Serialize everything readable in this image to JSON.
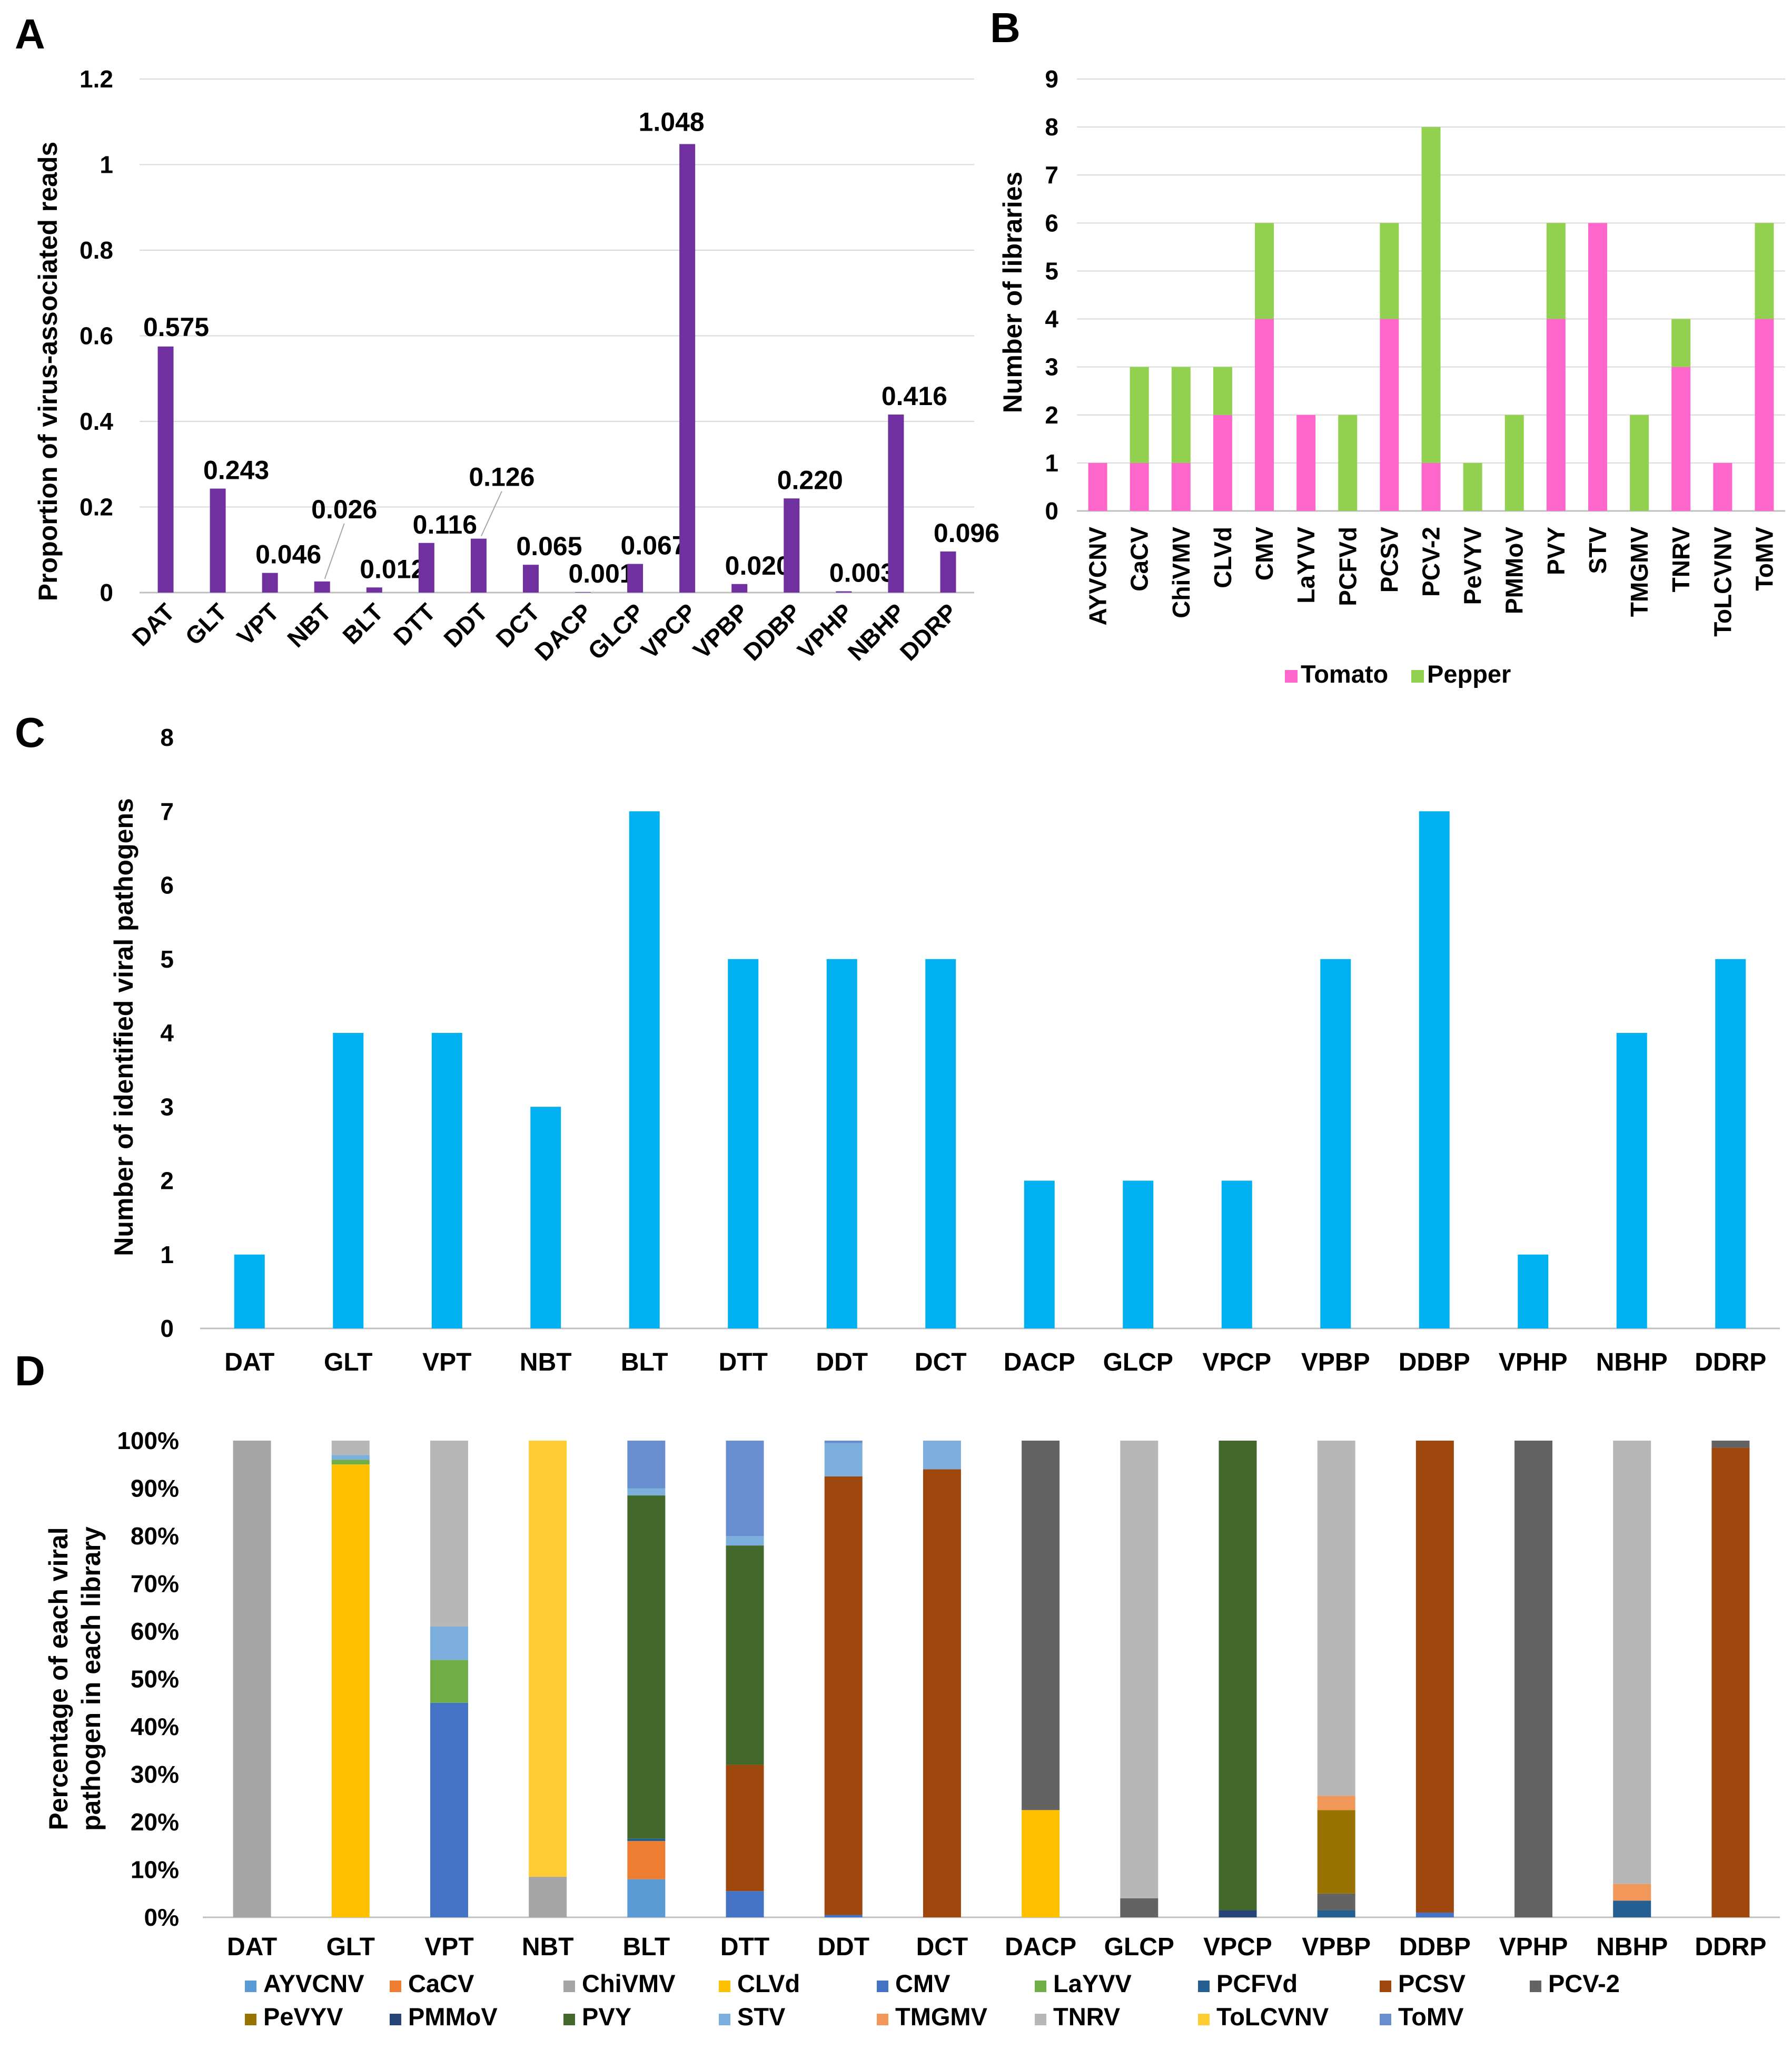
{
  "figure": {
    "panel_labels": [
      "A",
      "B",
      "C",
      "D"
    ]
  },
  "chart_data": [
    {
      "panel": "A",
      "type": "bar",
      "title": "",
      "xlabel": "",
      "ylabel": "Proportion of virus-associated  reads",
      "categories": [
        "DAT",
        "GLT",
        "VPT",
        "NBT",
        "BLT",
        "DTT",
        "DDT",
        "DCT",
        "DACP",
        "GLCP",
        "VPCP",
        "VPBP",
        "DDBP",
        "VPHP",
        "NBHP",
        "DDRP"
      ],
      "values": [
        0.575,
        0.243,
        0.046,
        0.026,
        0.012,
        0.116,
        0.126,
        0.065,
        0.001,
        0.067,
        1.048,
        0.02,
        0.22,
        0.003,
        0.416,
        0.096
      ],
      "value_labels": [
        "0.575",
        "0.243",
        "0.046",
        "0.026",
        "0.012",
        "0.116",
        "0.126",
        "0.065",
        "0.001",
        "0.067",
        "1.048",
        "0.020",
        "0.220",
        "0.003",
        "0.416",
        "0.096"
      ],
      "y_ticks": [
        "0",
        "0.2",
        "0.4",
        "0.6",
        "0.8",
        "1",
        "1.2"
      ],
      "ylim": [
        0,
        1.2
      ],
      "grid": true,
      "color": "#7030a0"
    },
    {
      "panel": "B",
      "type": "bar",
      "stacked": true,
      "title": "",
      "xlabel": "",
      "ylabel": "Number of libraries",
      "categories": [
        "AYVCNV",
        "CaCV",
        "ChiVMV",
        "CLVd",
        "CMV",
        "LaYVV",
        "PCFVd",
        "PCSV",
        "PCV-2",
        "PeVYV",
        "PMMoV",
        "PVY",
        "STV",
        "TMGMV",
        "TNRV",
        "ToLCVNV",
        "ToMV"
      ],
      "series": [
        {
          "name": "Tomato",
          "color": "#ff66cc",
          "values": [
            1,
            1,
            1,
            2,
            4,
            2,
            0,
            4,
            1,
            0,
            0,
            4,
            6,
            0,
            3,
            1,
            4
          ]
        },
        {
          "name": "Pepper",
          "color": "#92d050",
          "values": [
            0,
            2,
            2,
            1,
            2,
            0,
            2,
            2,
            7,
            1,
            2,
            2,
            0,
            2,
            1,
            0,
            2
          ]
        }
      ],
      "y_ticks": [
        "0",
        "1",
        "2",
        "3",
        "4",
        "5",
        "6",
        "7",
        "8",
        "9"
      ],
      "ylim": [
        0,
        9
      ],
      "legend": "bottom",
      "grid": true
    },
    {
      "panel": "C",
      "type": "bar",
      "title": "",
      "xlabel": "",
      "ylabel": "Number of identified viral pathogens",
      "categories": [
        "DAT",
        "GLT",
        "VPT",
        "NBT",
        "BLT",
        "DTT",
        "DDT",
        "DCT",
        "DACP",
        "GLCP",
        "VPCP",
        "VPBP",
        "DDBP",
        "VPHP",
        "NBHP",
        "DDRP"
      ],
      "values": [
        1,
        4,
        4,
        3,
        7,
        5,
        5,
        5,
        2,
        2,
        2,
        5,
        7,
        1,
        4,
        5
      ],
      "y_ticks": [
        "0",
        "1",
        "2",
        "3",
        "4",
        "5",
        "6",
        "7",
        "8"
      ],
      "ylim": [
        0,
        8
      ],
      "grid": false,
      "color": "#00b0f0"
    },
    {
      "panel": "D",
      "type": "bar",
      "stacked": true,
      "percent": true,
      "title": "",
      "xlabel": "",
      "ylabel": "Percentage of each viral pathogen in each library",
      "ylabel_lines": [
        "Percentage of each viral",
        "pathogen in each library"
      ],
      "categories": [
        "DAT",
        "GLT",
        "VPT",
        "NBT",
        "BLT",
        "DTT",
        "DDT",
        "DCT",
        "DACP",
        "GLCP",
        "VPCP",
        "VPBP",
        "DDBP",
        "VPHP",
        "NBHP",
        "DDRP"
      ],
      "series": [
        {
          "name": "AYVCNV",
          "color": "#5b9bd5",
          "values": [
            0,
            0,
            0,
            0,
            8,
            0,
            0,
            0,
            0,
            0,
            0,
            0,
            0,
            0,
            0,
            0
          ]
        },
        {
          "name": "CaCV",
          "color": "#ed7d31",
          "values": [
            0,
            0,
            0,
            0,
            8,
            0,
            0,
            0,
            0,
            0,
            0,
            0,
            0,
            0,
            0,
            0
          ]
        },
        {
          "name": "ChiVMV",
          "color": "#a5a5a5",
          "values": [
            100,
            0,
            0,
            8.5,
            0,
            0,
            0,
            0,
            0,
            0,
            0,
            0,
            0,
            0,
            0,
            0
          ]
        },
        {
          "name": "CLVd",
          "color": "#ffc000",
          "values": [
            0,
            95,
            0,
            0,
            0,
            0,
            0,
            0,
            22.5,
            0,
            0,
            0,
            0,
            0,
            0,
            0
          ]
        },
        {
          "name": "CMV",
          "color": "#4472c4",
          "values": [
            0,
            0,
            45,
            0,
            0,
            5.5,
            0.5,
            0,
            0,
            0,
            0,
            0,
            1,
            0,
            0,
            0
          ]
        },
        {
          "name": "LaYVV",
          "color": "#70ad47",
          "values": [
            0,
            1,
            9,
            0,
            0,
            0,
            0,
            0,
            0,
            0,
            0,
            0,
            0,
            0,
            0,
            0
          ]
        },
        {
          "name": "PCFVd",
          "color": "#255e91",
          "values": [
            0,
            0,
            0,
            0,
            0.5,
            0,
            0,
            0,
            0,
            0,
            0,
            1.5,
            0,
            0,
            3.5,
            0
          ]
        },
        {
          "name": "PCSV",
          "color": "#9e480e",
          "values": [
            0,
            0,
            0,
            0,
            0,
            26.5,
            92,
            94,
            0,
            0,
            0,
            0,
            99,
            0,
            0,
            98.5
          ]
        },
        {
          "name": "PCV-2",
          "color": "#636363",
          "values": [
            0,
            0,
            0,
            0,
            0,
            0,
            0,
            0,
            77.5,
            4,
            0,
            3.5,
            0,
            100,
            0,
            1.5
          ]
        },
        {
          "name": "PeVYV",
          "color": "#997300",
          "values": [
            0,
            0,
            0,
            0,
            0,
            0,
            0,
            0,
            0,
            0,
            0,
            17.5,
            0,
            0,
            0,
            0
          ]
        },
        {
          "name": "PMMoV",
          "color": "#264478",
          "values": [
            0,
            0,
            0,
            0,
            0,
            0,
            0,
            0,
            0,
            0,
            1.5,
            0,
            0,
            0,
            0,
            0
          ]
        },
        {
          "name": "PVY",
          "color": "#43682b",
          "values": [
            0,
            0,
            0,
            0,
            72,
            46,
            0,
            0,
            0,
            0,
            98.5,
            0,
            0,
            0,
            0,
            0
          ]
        },
        {
          "name": "STV",
          "color": "#7cafdd",
          "values": [
            0,
            1,
            7,
            0,
            1.5,
            2,
            7,
            6,
            0,
            0,
            0,
            0,
            0,
            0,
            0,
            0
          ]
        },
        {
          "name": "TMGMV",
          "color": "#f1975a",
          "values": [
            0,
            0,
            0,
            0,
            0,
            0,
            0,
            0,
            0,
            0,
            0,
            3,
            0,
            0,
            3.5,
            0
          ]
        },
        {
          "name": "TNRV",
          "color": "#b7b7b7",
          "values": [
            0,
            3,
            39,
            0,
            0,
            0,
            0,
            0,
            0,
            96,
            0,
            74.5,
            0,
            0,
            93,
            0
          ]
        },
        {
          "name": "ToLCVNV",
          "color": "#ffcd33",
          "values": [
            0,
            0,
            0,
            91.5,
            0,
            0,
            0,
            0,
            0,
            0,
            0,
            0,
            0,
            0,
            0,
            0
          ]
        },
        {
          "name": "ToMV",
          "color": "#698ed0",
          "values": [
            0,
            0,
            0,
            0,
            10,
            20,
            0.5,
            0,
            0,
            0,
            0,
            0,
            0,
            0,
            0,
            0
          ]
        }
      ],
      "y_ticks": [
        "0%",
        "10%",
        "20%",
        "30%",
        "40%",
        "50%",
        "60%",
        "70%",
        "80%",
        "90%",
        "100%"
      ],
      "ylim": [
        0,
        100
      ],
      "legend": "bottom",
      "grid": false
    }
  ]
}
